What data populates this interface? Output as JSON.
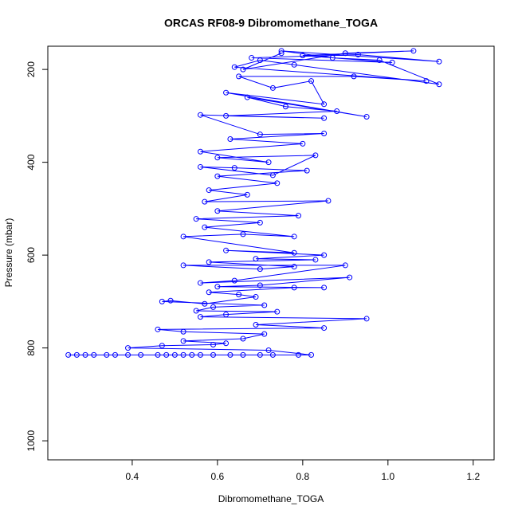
{
  "chart_data": {
    "type": "line",
    "title": "ORCAS RF08-9 Dibromomethane_TOGA",
    "x_label": "Dibromomethane_TOGA",
    "y_label": "Pressure (mbar)",
    "x": [
      0.25,
      0.27,
      0.29,
      0.31,
      0.34,
      0.36,
      0.39,
      0.42,
      0.46,
      0.48,
      0.5,
      0.52,
      0.54,
      0.56,
      0.59,
      0.63,
      0.66,
      0.7,
      0.73,
      0.79,
      0.82,
      0.72,
      0.39,
      0.47,
      0.59,
      0.62,
      0.52,
      0.66,
      0.71,
      0.52,
      0.46,
      0.85,
      0.69,
      0.95,
      0.56,
      0.62,
      0.74,
      0.55,
      0.59,
      0.71,
      0.47,
      0.49,
      0.57,
      0.69,
      0.65,
      0.58,
      0.78,
      0.85,
      0.6,
      0.7,
      0.91,
      0.56,
      0.64,
      0.9,
      0.52,
      0.7,
      0.78,
      0.58,
      0.83,
      0.69,
      0.85,
      0.62,
      0.78,
      0.52,
      0.66,
      0.78,
      0.57,
      0.7,
      0.55,
      0.79,
      0.6,
      0.86,
      0.57,
      0.67,
      0.58,
      0.74,
      0.6,
      0.81,
      0.64,
      0.56,
      0.73,
      0.83,
      0.6,
      0.72,
      0.56,
      0.8,
      0.63,
      0.85,
      0.7,
      0.56,
      0.85,
      0.62,
      0.88,
      0.76,
      0.67,
      0.95,
      0.62,
      0.85,
      0.82,
      0.73,
      0.65,
      0.92,
      1.09,
      0.64,
      0.7,
      0.78,
      1.12,
      0.98,
      0.87,
      0.75,
      1.12,
      0.93,
      0.68,
      1.01,
      0.8,
      1.06,
      0.9,
      0.66,
      0.75
    ],
    "series": [
      {
        "color": "#0000ff",
        "values": [
          815,
          815,
          815,
          815,
          815,
          815,
          815,
          815,
          815,
          815,
          815,
          815,
          815,
          815,
          815,
          815,
          815,
          815,
          815,
          815,
          815,
          805,
          800,
          795,
          793,
          790,
          785,
          780,
          770,
          765,
          760,
          757,
          750,
          737,
          733,
          728,
          722,
          720,
          712,
          708,
          700,
          698,
          705,
          690,
          685,
          680,
          670,
          670,
          668,
          665,
          648,
          660,
          655,
          622,
          622,
          630,
          625,
          615,
          610,
          608,
          600,
          590,
          595,
          560,
          555,
          560,
          540,
          530,
          522,
          515,
          505,
          483,
          485,
          470,
          460,
          445,
          430,
          418,
          412,
          410,
          428,
          385,
          390,
          400,
          377,
          360,
          350,
          338,
          340,
          298,
          305,
          300,
          290,
          280,
          260,
          302,
          250,
          275,
          225,
          240,
          215,
          215,
          225,
          195,
          180,
          190,
          232,
          180,
          175,
          160,
          183,
          168,
          175,
          185,
          170,
          160,
          165,
          200,
          165
        ]
      }
    ],
    "xlim": [
      0.202,
      1.249
    ],
    "ylim": [
      1041,
      150
    ],
    "xticks": [
      0.4,
      0.6,
      0.8,
      {
        "value": 1,
        "label": "1.0"
      },
      1.2
    ],
    "yticks": [
      200,
      400,
      600,
      800,
      1000
    ]
  }
}
